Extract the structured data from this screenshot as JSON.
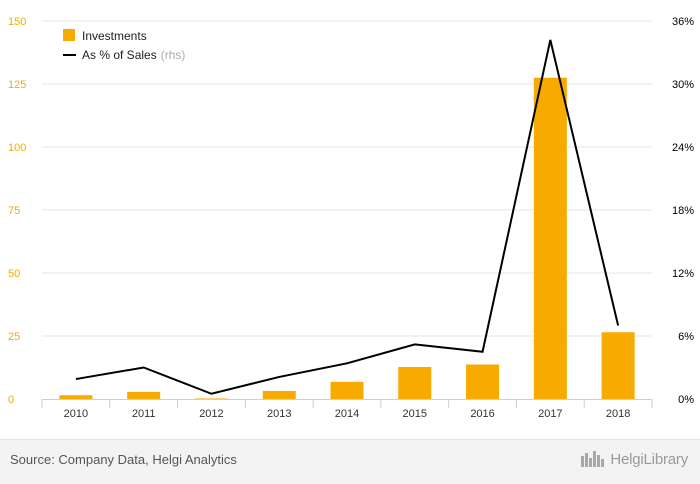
{
  "chart_data": {
    "type": "bar+line",
    "categories": [
      "2010",
      "2011",
      "2012",
      "2013",
      "2014",
      "2015",
      "2016",
      "2017",
      "2018"
    ],
    "series": [
      {
        "name": "Investments",
        "type": "bar",
        "axis": "left",
        "color": "#f7ab00",
        "values": [
          1.5,
          2.8,
          0.2,
          3.2,
          6.8,
          12.7,
          13.7,
          127.5,
          26.5
        ]
      },
      {
        "name": "As % of Sales",
        "name_suffix": "(rhs)",
        "type": "line",
        "axis": "right",
        "color": "#000000",
        "values": [
          1.9,
          3.0,
          0.5,
          2.1,
          3.4,
          5.2,
          4.5,
          34.2,
          7.0
        ]
      }
    ],
    "left_axis": {
      "min": 0,
      "max": 150,
      "ticks": [
        "0",
        "25",
        "50",
        "75",
        "100",
        "125",
        "150"
      ],
      "tick_values": [
        0,
        25,
        50,
        75,
        100,
        125,
        150
      ]
    },
    "right_axis": {
      "min": 0,
      "max": 36,
      "ticks": [
        "0%",
        "6%",
        "12%",
        "18%",
        "24%",
        "30%",
        "36%"
      ],
      "tick_values": [
        0,
        6,
        12,
        18,
        24,
        30,
        36
      ]
    },
    "legend_position": "top-left",
    "grid": true
  },
  "footer": {
    "source": "Source: Company Data, Helgi Analytics",
    "brand": "HelgiLibrary"
  }
}
